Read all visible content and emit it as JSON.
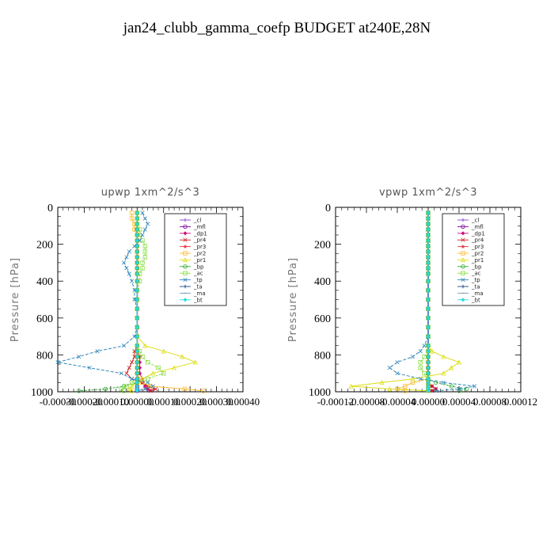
{
  "figure": {
    "title": "jan24_clubb_gamma_coefp  BUDGET at240E,28N"
  },
  "chart_data": [
    {
      "type": "line",
      "title": "upwp   1xm^2/s^3",
      "ylabel": "Pressure [hPa]",
      "xlim": [
        -0.0003,
        0.0004
      ],
      "ylim": [
        1000,
        0
      ],
      "y_inverted": true,
      "xticks": [
        "-0.00030",
        "-0.00020",
        "-0.00010",
        "0.00000",
        "0.00010",
        "0.00020",
        "0.00030",
        "0.00040"
      ],
      "yticks": [
        "0",
        "200",
        "400",
        "600",
        "800",
        "1000"
      ],
      "legend_position": "top-right",
      "pressure": [
        30,
        60,
        90,
        120,
        150,
        180,
        210,
        240,
        270,
        300,
        330,
        360,
        400,
        450,
        500,
        550,
        600,
        650,
        700,
        750,
        780,
        810,
        840,
        870,
        900,
        930,
        950,
        970,
        985,
        995
      ],
      "series": [
        {
          "name": "_cl",
          "color": "#8844cc",
          "values": [
            0,
            0,
            0,
            0,
            0,
            0,
            0,
            0,
            0,
            0,
            0,
            0,
            0,
            0,
            0,
            0,
            0,
            0,
            0,
            0,
            0,
            0,
            0,
            0,
            0,
            0,
            0,
            0,
            0,
            0
          ]
        },
        {
          "name": "_mfl",
          "color": "#7a0099",
          "values": [
            0,
            0,
            0,
            0,
            0,
            0,
            0,
            0,
            0,
            0,
            0,
            0,
            0,
            0,
            0,
            0,
            0,
            0,
            0,
            0,
            0,
            0,
            0,
            0,
            0,
            0,
            0,
            0,
            0,
            0
          ]
        },
        {
          "name": "_dp1",
          "color": "#cc1177",
          "values": [
            0,
            0,
            0,
            0,
            0,
            0,
            0,
            0,
            0,
            0,
            0,
            0,
            0,
            0,
            0,
            0,
            0,
            0,
            0,
            0,
            0,
            1e-05,
            1e-05,
            1e-05,
            1e-05,
            2e-05,
            2e-05,
            3e-05,
            4e-05,
            5e-05
          ]
        },
        {
          "name": "_pr4",
          "color": "#cc2222",
          "values": [
            0,
            0,
            0,
            0,
            0,
            0,
            0,
            0,
            0,
            0,
            0,
            0,
            0,
            0,
            0,
            0,
            0,
            0,
            0,
            0,
            -1e-05,
            -1e-05,
            -2e-05,
            -3e-05,
            -4e-05,
            -2e-05,
            2e-05,
            4e-05,
            7e-05,
            5e-05
          ]
        },
        {
          "name": "_pr3",
          "color": "#ee3344",
          "values": [
            0,
            0,
            0,
            0,
            0,
            0,
            0,
            0,
            0,
            0,
            0,
            0,
            0,
            0,
            0,
            0,
            0,
            0,
            0,
            0,
            0,
            0,
            0,
            0,
            0,
            0,
            0,
            0,
            0,
            0
          ]
        },
        {
          "name": "_pr2",
          "color": "#ffbb33",
          "values": [
            -2e-05,
            -2e-05,
            -1e-05,
            -1e-05,
            0,
            0,
            0,
            0,
            0,
            0,
            0,
            0,
            0,
            0,
            0,
            0,
            0,
            0,
            0,
            0,
            0,
            0,
            0,
            0,
            0,
            1e-05,
            2e-05,
            5e-05,
            0.00018,
            0.00025
          ]
        },
        {
          "name": "_pr1",
          "color": "#dddd11",
          "values": [
            0,
            0,
            0,
            0,
            0,
            0,
            0,
            0,
            0,
            0,
            0,
            0,
            0,
            0,
            0,
            0,
            0,
            0,
            0,
            3e-05,
            0.0001,
            0.00017,
            0.00022,
            0.00014,
            6e-05,
            2e-05,
            0,
            -2e-05,
            -3e-05,
            -2e-05
          ]
        },
        {
          "name": "_bp",
          "color": "#33aa33",
          "values": [
            0,
            0,
            0,
            0,
            0,
            0,
            0,
            0,
            0,
            0,
            0,
            0,
            0,
            0,
            0,
            0,
            0,
            0,
            0,
            0,
            0,
            0,
            0,
            0,
            0,
            0,
            0,
            -5e-05,
            -0.00012,
            -0.00022
          ]
        },
        {
          "name": "_ac",
          "color": "#88dd44",
          "values": [
            0,
            0,
            0,
            1e-05,
            1e-05,
            2e-05,
            3e-05,
            3e-05,
            3e-05,
            2e-05,
            2e-05,
            1e-05,
            1e-05,
            0,
            0,
            0,
            0,
            0,
            0,
            0,
            1e-05,
            2e-05,
            4e-05,
            8e-05,
            0.0001,
            4e-05,
            -2e-05,
            -4e-05,
            -6e-05,
            -5e-05
          ]
        },
        {
          "name": "_tp",
          "color": "#3388bb",
          "values": [
            2e-05,
            3e-05,
            4e-05,
            3e-05,
            2e-05,
            1e-05,
            -1e-05,
            -3e-05,
            -4e-05,
            -5e-05,
            -4e-05,
            -3e-05,
            -2e-05,
            -1e-05,
            -1e-05,
            0,
            0,
            0,
            -1e-05,
            -5e-05,
            -0.00015,
            -0.00022,
            -0.0003,
            -0.00018,
            -6e-05,
            -2e-05,
            4e-05,
            6e-05,
            3e-05,
            0
          ]
        },
        {
          "name": "_ta",
          "color": "#224488",
          "values": [
            0,
            0,
            0,
            0,
            0,
            0,
            0,
            0,
            0,
            0,
            0,
            0,
            0,
            0,
            0,
            0,
            0,
            0,
            0,
            0,
            0,
            0,
            0,
            0,
            0,
            0,
            0,
            0,
            0,
            0
          ]
        },
        {
          "name": "_ma",
          "color": "#7799bb",
          "values": [
            0,
            0,
            0,
            0,
            0,
            0,
            0,
            0,
            0,
            0,
            0,
            0,
            0,
            0,
            0,
            0,
            0,
            0,
            0,
            0,
            0,
            0,
            0,
            0,
            0,
            0,
            0,
            0,
            0,
            0
          ]
        },
        {
          "name": "_bt",
          "color": "#22dddd",
          "values": [
            0,
            0,
            0,
            0,
            0,
            0,
            0,
            0,
            0,
            0,
            0,
            0,
            0,
            0,
            0,
            0,
            0,
            0,
            0,
            0,
            0,
            0,
            0,
            0,
            0,
            0,
            0,
            0,
            0,
            0
          ]
        }
      ]
    },
    {
      "type": "line",
      "title": "vpwp   1xm^2/s^3",
      "ylabel": "Pressure [hPa]",
      "xlim": [
        -0.00012,
        0.00012
      ],
      "ylim": [
        1000,
        0
      ],
      "y_inverted": true,
      "xticks": [
        "-0.00012",
        "-0.00008",
        "-0.00004",
        "0.00000",
        "0.00004",
        "0.00008",
        "0.00012"
      ],
      "yticks": [
        "0",
        "200",
        "400",
        "600",
        "800",
        "1000"
      ],
      "legend_position": "top-right",
      "pressure": [
        30,
        60,
        90,
        120,
        150,
        180,
        210,
        240,
        270,
        300,
        330,
        360,
        400,
        450,
        500,
        550,
        600,
        650,
        700,
        750,
        780,
        810,
        840,
        870,
        900,
        930,
        950,
        970,
        985,
        995
      ],
      "series": [
        {
          "name": "_cl",
          "color": "#8844cc",
          "values": [
            0,
            0,
            0,
            0,
            0,
            0,
            0,
            0,
            0,
            0,
            0,
            0,
            0,
            0,
            0,
            0,
            0,
            0,
            0,
            0,
            0,
            0,
            0,
            0,
            0,
            0,
            0,
            0,
            0,
            0
          ]
        },
        {
          "name": "_mfl",
          "color": "#7a0099",
          "values": [
            0,
            0,
            0,
            0,
            0,
            0,
            0,
            0,
            0,
            0,
            0,
            0,
            0,
            0,
            0,
            0,
            0,
            0,
            0,
            0,
            0,
            0,
            0,
            0,
            0,
            0,
            0,
            0,
            0,
            0
          ]
        },
        {
          "name": "_dp1",
          "color": "#cc1177",
          "values": [
            0,
            0,
            0,
            0,
            0,
            0,
            0,
            0,
            0,
            0,
            0,
            0,
            0,
            0,
            0,
            0,
            0,
            0,
            0,
            0,
            0,
            0,
            0,
            0,
            0,
            0,
            0,
            5e-06,
            1e-05,
            5e-06
          ]
        },
        {
          "name": "_pr4",
          "color": "#cc2222",
          "values": [
            0,
            0,
            0,
            0,
            0,
            0,
            0,
            0,
            0,
            0,
            0,
            0,
            0,
            0,
            0,
            0,
            0,
            0,
            0,
            0,
            0,
            0,
            0,
            0,
            0,
            0,
            0,
            5e-06,
            1e-05,
            5e-06
          ]
        },
        {
          "name": "_pr3",
          "color": "#ee3344",
          "values": [
            0,
            0,
            0,
            0,
            0,
            0,
            0,
            0,
            0,
            0,
            0,
            0,
            0,
            0,
            0,
            0,
            0,
            0,
            0,
            0,
            0,
            0,
            0,
            0,
            0,
            0,
            0,
            0,
            0,
            0
          ]
        },
        {
          "name": "_pr2",
          "color": "#ffbb33",
          "values": [
            0,
            0,
            0,
            0,
            0,
            0,
            0,
            0,
            0,
            0,
            0,
            0,
            0,
            0,
            0,
            0,
            0,
            0,
            0,
            0,
            0,
            0,
            0,
            0,
            0,
            0,
            -2e-05,
            -3e-05,
            -4e-05,
            -3e-05
          ]
        },
        {
          "name": "_pr1",
          "color": "#dddd11",
          "values": [
            0,
            0,
            0,
            0,
            0,
            0,
            0,
            0,
            0,
            0,
            0,
            0,
            0,
            0,
            0,
            0,
            0,
            0,
            0,
            0,
            5e-06,
            2e-05,
            4e-05,
            3e-05,
            2e-05,
            -2e-05,
            -6e-05,
            -0.0001,
            -5e-05,
            0
          ]
        },
        {
          "name": "_bp",
          "color": "#33aa33",
          "values": [
            0,
            0,
            0,
            0,
            0,
            0,
            0,
            0,
            0,
            0,
            0,
            0,
            0,
            0,
            0,
            0,
            0,
            0,
            0,
            0,
            0,
            0,
            0,
            0,
            0,
            0,
            1e-05,
            3e-05,
            5e-05,
            4e-05
          ]
        },
        {
          "name": "_ac",
          "color": "#88dd44",
          "values": [
            0,
            0,
            0,
            0,
            0,
            0,
            0,
            0,
            0,
            0,
            0,
            0,
            0,
            0,
            0,
            0,
            0,
            0,
            0,
            0,
            0,
            -5e-06,
            -1e-05,
            -1e-05,
            -5e-06,
            0,
            0,
            0,
            0,
            0
          ]
        },
        {
          "name": "_tp",
          "color": "#3388bb",
          "values": [
            0,
            0,
            0,
            0,
            0,
            0,
            0,
            0,
            0,
            0,
            0,
            0,
            0,
            0,
            0,
            0,
            0,
            0,
            0,
            -5e-06,
            -1e-05,
            -2e-05,
            -4e-05,
            -5e-05,
            -4e-05,
            -1e-05,
            2e-05,
            6e-05,
            4e-05,
            1e-05
          ]
        },
        {
          "name": "_ta",
          "color": "#224488",
          "values": [
            0,
            0,
            0,
            0,
            0,
            0,
            0,
            0,
            0,
            0,
            0,
            0,
            0,
            0,
            0,
            0,
            0,
            0,
            0,
            0,
            0,
            0,
            0,
            0,
            0,
            0,
            0,
            0,
            0,
            0
          ]
        },
        {
          "name": "_ma",
          "color": "#7799bb",
          "values": [
            0,
            0,
            0,
            0,
            0,
            0,
            0,
            0,
            0,
            0,
            0,
            0,
            0,
            0,
            0,
            0,
            0,
            0,
            0,
            0,
            0,
            0,
            0,
            0,
            0,
            0,
            0,
            0,
            0,
            0
          ]
        },
        {
          "name": "_bt",
          "color": "#22dddd",
          "values": [
            0,
            0,
            0,
            0,
            0,
            0,
            0,
            0,
            0,
            0,
            0,
            0,
            0,
            0,
            0,
            0,
            0,
            0,
            0,
            0,
            0,
            0,
            0,
            0,
            0,
            0,
            0,
            0,
            0,
            0
          ]
        }
      ]
    }
  ]
}
